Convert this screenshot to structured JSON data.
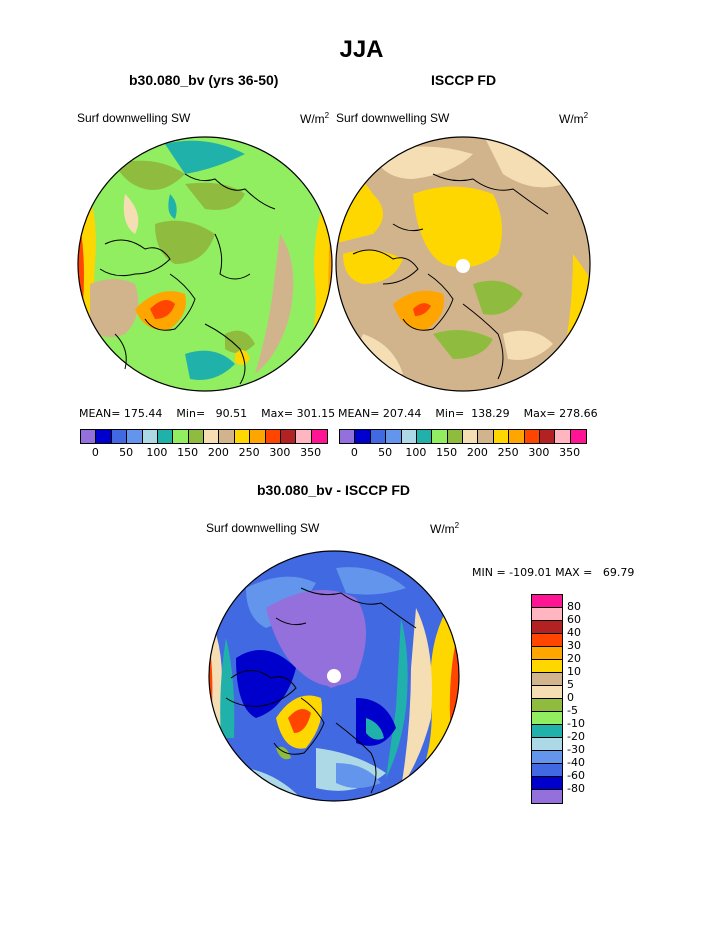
{
  "title": "JJA",
  "panel_left": {
    "title": "b30.080_bv (yrs 36-50)",
    "field_label": "Surf downwelling SW",
    "units": "W/m",
    "units_sup": "2",
    "stats": {
      "mean_label": "MEAN=",
      "mean": "175.44",
      "min_label": "Min=",
      "min": "90.51",
      "max_label": "Max=",
      "max": "301.15"
    }
  },
  "panel_right": {
    "title": "ISCCP FD",
    "field_label": "Surf downwelling SW",
    "units": "W/m",
    "units_sup": "2",
    "stats": {
      "mean_label": "MEAN=",
      "mean": "207.44",
      "min_label": "Min=",
      "min": "138.29",
      "max_label": "Max=",
      "max": "278.66"
    }
  },
  "panel_diff": {
    "title": "b30.080_bv - ISCCP FD",
    "field_label": "Surf downwelling SW",
    "units": "W/m",
    "units_sup": "2",
    "minmax": "MIN = -109.01 MAX =   69.79"
  },
  "colorbar_top": {
    "colors": [
      "#9370db",
      "#0000cd",
      "#4169e1",
      "#6495ed",
      "#add8e6",
      "#20b2aa",
      "#90ee60",
      "#8fbc3f",
      "#f5deb3",
      "#d2b48c",
      "#ffd700",
      "#ffa500",
      "#ff4500",
      "#b22222",
      "#ffb6c1",
      "#ff1493"
    ],
    "ticks": [
      "0",
      "50",
      "100",
      "150",
      "200",
      "250",
      "300",
      "350"
    ]
  },
  "colorbar_diff": {
    "colors": [
      "#ff1493",
      "#ffb6c1",
      "#b22222",
      "#ff4500",
      "#ffa500",
      "#ffd700",
      "#d2b48c",
      "#f5deb3",
      "#8fbc3f",
      "#90ee60",
      "#20b2aa",
      "#add8e6",
      "#6495ed",
      "#4169e1",
      "#0000cd",
      "#9370db"
    ],
    "labels": [
      "80",
      "60",
      "40",
      "30",
      "20",
      "10",
      "5",
      "0",
      "-5",
      "-10",
      "-20",
      "-30",
      "-40",
      "-60",
      "-80"
    ]
  },
  "chart_data": [
    {
      "type": "heatmap",
      "title": "b30.080_bv (yrs 36-50)",
      "variable": "Surf downwelling SW",
      "units": "W/m2",
      "projection": "north polar stereographic",
      "color_levels": [
        0,
        25,
        50,
        75,
        100,
        125,
        150,
        175,
        200,
        225,
        250,
        275,
        300,
        325,
        350
      ],
      "mean": 175.44,
      "min": 90.51,
      "max": 301.15
    },
    {
      "type": "heatmap",
      "title": "ISCCP FD",
      "variable": "Surf downwelling SW",
      "units": "W/m2",
      "projection": "north polar stereographic",
      "color_levels": [
        0,
        25,
        50,
        75,
        100,
        125,
        150,
        175,
        200,
        225,
        250,
        275,
        300,
        325,
        350
      ],
      "mean": 207.44,
      "min": 138.29,
      "max": 278.66
    },
    {
      "type": "heatmap",
      "title": "b30.080_bv - ISCCP FD",
      "variable": "Surf downwelling SW",
      "units": "W/m2",
      "projection": "north polar stereographic",
      "color_levels": [
        -80,
        -60,
        -40,
        -30,
        -20,
        -10,
        -5,
        0,
        5,
        10,
        20,
        30,
        40,
        60,
        80
      ],
      "min": -109.01,
      "max": 69.79
    }
  ]
}
